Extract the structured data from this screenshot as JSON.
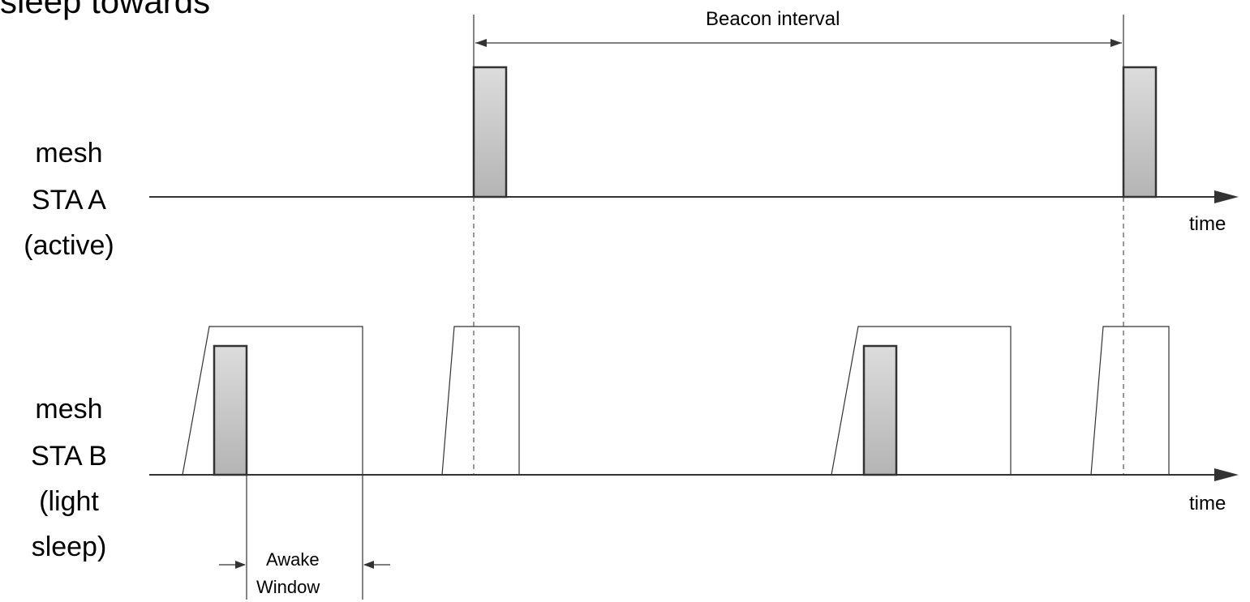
{
  "title": "sleep towards",
  "beacon_interval_label": "Beacon interval",
  "row_a": {
    "line1": "mesh",
    "line2": "STA A",
    "line3": "(active)"
  },
  "row_b": {
    "line1": "mesh",
    "line2": "STA B",
    "line3": "(light",
    "line4": "sleep)"
  },
  "time_label_a": "time",
  "time_label_b": "time",
  "awake_window": {
    "line1": "Awake",
    "line2": "Window"
  },
  "colors": {
    "beacon_fill_top": "#dcdcdc",
    "beacon_fill_bottom": "#b4b4b4",
    "line": "#333333"
  }
}
